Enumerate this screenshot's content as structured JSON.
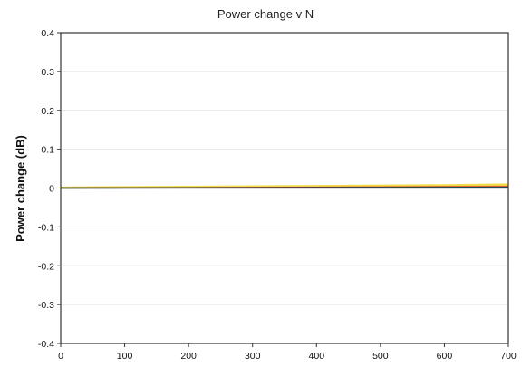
{
  "chart_data": {
    "type": "line",
    "title": "Power change v N",
    "xlabel": "",
    "ylabel": "Power change (dB)",
    "xlim": [
      0,
      700
    ],
    "ylim": [
      -0.4,
      0.4
    ],
    "x_ticks": [
      0,
      100,
      200,
      300,
      400,
      500,
      600,
      700
    ],
    "y_ticks": [
      0.4,
      0.3,
      0.2,
      0.1,
      0,
      -0.1,
      -0.2,
      -0.3,
      -0.4
    ],
    "x_tick_labels": [
      "0",
      "100",
      "200",
      "300",
      "400",
      "500",
      "600",
      "700"
    ],
    "y_tick_labels": [
      "0.4",
      "0.3",
      "0.2",
      "0.1",
      "0",
      "-0.1",
      "-0.2",
      "-0.3",
      "-0.4"
    ],
    "grid": true,
    "series": [
      {
        "color": "#f2dc4a",
        "x": [
          0,
          100,
          200,
          300,
          400,
          500,
          600,
          700
        ],
        "y": [
          0.001,
          0.002,
          0.003,
          0.004,
          0.005,
          0.006,
          0.007,
          0.009
        ]
      },
      {
        "color": "#e8a23a",
        "x": [
          0,
          100,
          200,
          300,
          400,
          500,
          600,
          700
        ],
        "y": [
          0.0005,
          0.001,
          0.0015,
          0.002,
          0.0025,
          0.003,
          0.004,
          0.005
        ]
      },
      {
        "color": "#c0392b",
        "x": [
          0,
          100,
          200,
          300,
          400,
          500,
          600,
          700
        ],
        "y": [
          0.0,
          0.0005,
          0.001,
          0.0015,
          0.002,
          0.0025,
          0.003,
          0.0035
        ]
      },
      {
        "color": "#2e6f2e",
        "x": [
          0,
          100,
          200,
          300,
          400,
          500,
          600,
          700
        ],
        "y": [
          0.0,
          0.0003,
          0.0006,
          0.001,
          0.0012,
          0.0015,
          0.0018,
          0.002
        ]
      },
      {
        "color": "#1f3a8a",
        "x": [
          0,
          100,
          200,
          300,
          400,
          500,
          600,
          700
        ],
        "y": [
          0.0,
          0.0,
          0.0003,
          0.0005,
          0.0006,
          0.0008,
          0.001,
          0.0012
        ]
      },
      {
        "color": "#111111",
        "x": [
          0,
          100,
          200,
          300,
          400,
          500,
          600,
          700
        ],
        "y": [
          0.0,
          0.0,
          0.0,
          0.0,
          0.0,
          0.0,
          0.0,
          0.0
        ]
      }
    ]
  }
}
